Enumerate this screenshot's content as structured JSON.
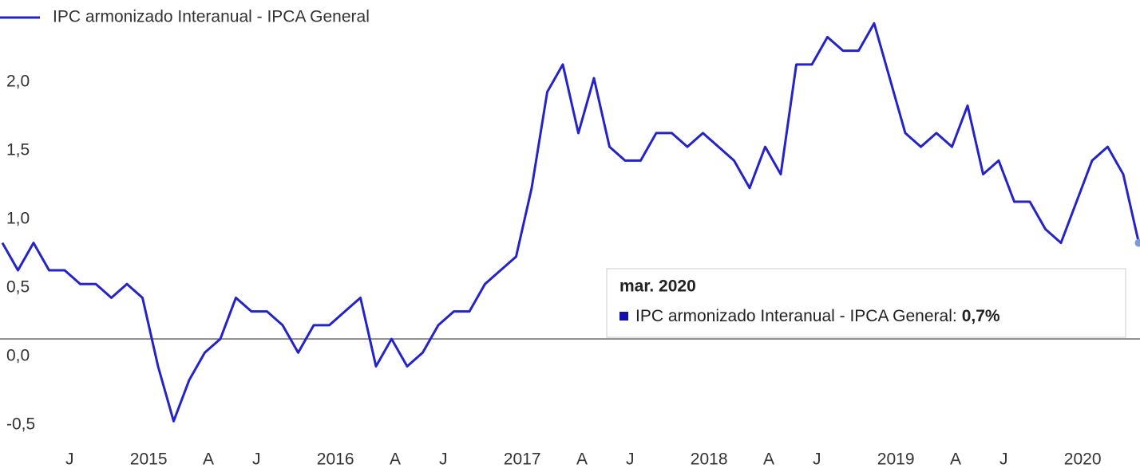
{
  "chart_data": {
    "type": "line",
    "x": [
      "2014-02",
      "2014-03",
      "2014-04",
      "2014-05",
      "2014-06",
      "2014-07",
      "2014-08",
      "2014-09",
      "2014-10",
      "2014-11",
      "2014-12",
      "2015-01",
      "2015-02",
      "2015-03",
      "2015-04",
      "2015-05",
      "2015-06",
      "2015-07",
      "2015-08",
      "2015-09",
      "2015-10",
      "2015-11",
      "2015-12",
      "2016-01",
      "2016-02",
      "2016-03",
      "2016-04",
      "2016-05",
      "2016-06",
      "2016-07",
      "2016-08",
      "2016-09",
      "2016-10",
      "2016-11",
      "2016-12",
      "2017-01",
      "2017-02",
      "2017-03",
      "2017-04",
      "2017-05",
      "2017-06",
      "2017-07",
      "2017-08",
      "2017-09",
      "2017-10",
      "2017-11",
      "2017-12",
      "2018-01",
      "2018-02",
      "2018-03",
      "2018-04",
      "2018-05",
      "2018-06",
      "2018-07",
      "2018-08",
      "2018-09",
      "2018-10",
      "2018-11",
      "2018-12",
      "2019-01",
      "2019-02",
      "2019-03",
      "2019-04",
      "2019-05",
      "2019-06",
      "2019-07",
      "2019-08",
      "2019-09",
      "2019-10",
      "2019-11",
      "2019-12",
      "2020-01",
      "2020-02",
      "2020-03"
    ],
    "series": [
      {
        "name": "IPC armonizado Interanual - IPCA General",
        "color": "#2323c8",
        "values": [
          0.7,
          0.5,
          0.7,
          0.5,
          0.5,
          0.4,
          0.4,
          0.3,
          0.4,
          0.3,
          -0.2,
          -0.6,
          -0.3,
          -0.1,
          0.0,
          0.3,
          0.2,
          0.2,
          0.1,
          -0.1,
          0.1,
          0.1,
          0.2,
          0.3,
          -0.2,
          0.0,
          -0.2,
          -0.1,
          0.1,
          0.2,
          0.2,
          0.4,
          0.5,
          0.6,
          1.1,
          1.8,
          2.0,
          1.5,
          1.9,
          1.4,
          1.3,
          1.3,
          1.5,
          1.5,
          1.4,
          1.5,
          1.4,
          1.3,
          1.1,
          1.4,
          1.2,
          2.0,
          2.0,
          2.2,
          2.1,
          2.1,
          2.3,
          1.9,
          1.5,
          1.4,
          1.5,
          1.4,
          1.7,
          1.2,
          1.3,
          1.0,
          1.0,
          0.8,
          0.7,
          1.0,
          1.3,
          1.4,
          1.2,
          0.7
        ]
      }
    ],
    "ylim": [
      -0.97,
      2.47
    ],
    "yticks": [
      {
        "value": -0.5,
        "label": "-0,5"
      },
      {
        "value": 0,
        "label": "0,0"
      },
      {
        "value": 0.5,
        "label": "0,5"
      },
      {
        "value": 1,
        "label": "1,0"
      },
      {
        "value": 1.5,
        "label": "1,5"
      },
      {
        "value": 2,
        "label": "2,0"
      }
    ],
    "xticks": [
      {
        "value": "2014-07",
        "label": "J"
      },
      {
        "value": "2015-01",
        "label": "2015"
      },
      {
        "value": "2015-04",
        "label": "A"
      },
      {
        "value": "2015-07",
        "label": "J"
      },
      {
        "value": "2016-01",
        "label": "2016"
      },
      {
        "value": "2016-04",
        "label": "A"
      },
      {
        "value": "2016-07",
        "label": "J"
      },
      {
        "value": "2017-01",
        "label": "2017"
      },
      {
        "value": "2017-04",
        "label": "A"
      },
      {
        "value": "2017-07",
        "label": "J"
      },
      {
        "value": "2018-01",
        "label": "2018"
      },
      {
        "value": "2018-04",
        "label": "A"
      },
      {
        "value": "2018-07",
        "label": "J"
      },
      {
        "value": "2019-01",
        "label": "2019"
      },
      {
        "value": "2019-04",
        "label": "A"
      },
      {
        "value": "2019-07",
        "label": "J"
      },
      {
        "value": "2020-01",
        "label": "2020"
      }
    ],
    "grid": false,
    "legend": "top-left",
    "tooltip": {
      "title": "mar. 2020",
      "text": "IPC armonizado Interanual - IPCA General:",
      "value": "0,7%"
    }
  }
}
